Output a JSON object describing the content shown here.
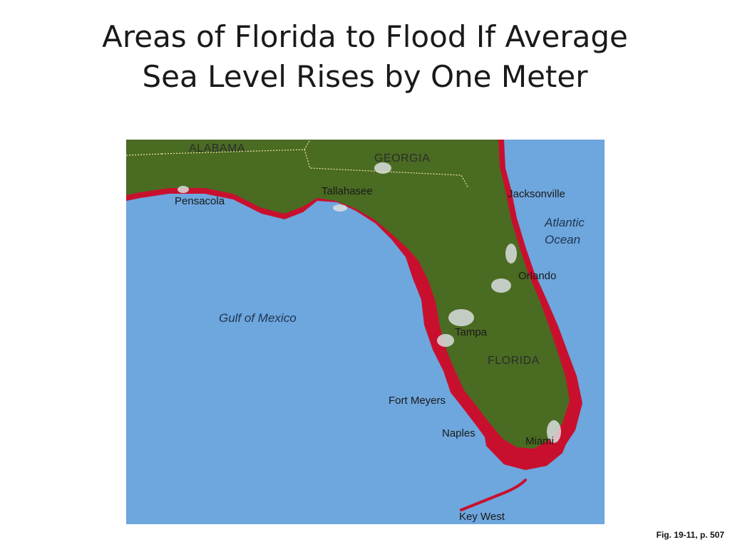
{
  "slide": {
    "title_line1": "Areas of Florida to Flood If Average",
    "title_line2": "Sea Level Rises by One Meter",
    "caption": "Fig. 19-11, p. 507"
  },
  "map": {
    "state_labels": {
      "alabama": "ALABAMA",
      "georgia": "GEORGIA",
      "florida": "FLORIDA"
    },
    "city_labels": {
      "pensacola": "Pensacola",
      "tallahassee": "Tallahasee",
      "jacksonville": "Jacksonville",
      "orlando": "Orlando",
      "tampa": "Tampa",
      "fort_meyers": "Fort Meyers",
      "naples": "Naples",
      "miami": "Miami",
      "key_west": "Key West"
    },
    "water_labels": {
      "gulf": "Gulf of Mexico",
      "atlantic_line1": "Atlantic",
      "atlantic_line2": "Ocean"
    },
    "colors": {
      "water": "#6ea6de",
      "land": "#4a6b22",
      "flood": "#c8102e",
      "urban": "#d9dede"
    }
  }
}
